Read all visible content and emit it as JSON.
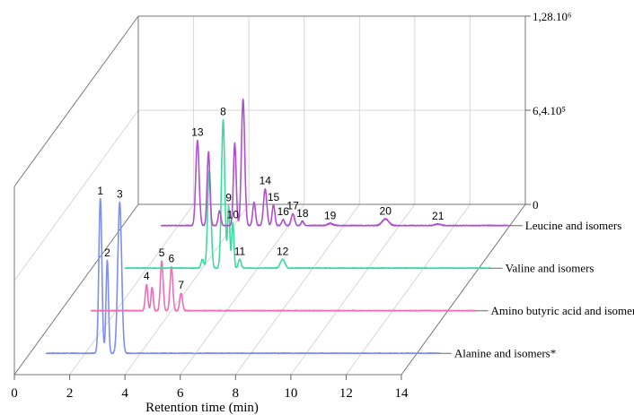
{
  "chart_data": {
    "type": "line",
    "style": "3d-stacked-chromatogram",
    "xlabel": "Retention time (min)",
    "xlim": [
      0,
      14
    ],
    "xticks": [
      "0",
      "2",
      "4",
      "6",
      "8",
      "10",
      "12",
      "14"
    ],
    "zticks": [
      "0",
      "6,4.10⁵",
      "1,28.10⁶"
    ],
    "zlim": [
      0,
      1280000
    ],
    "grid": true,
    "series": [
      {
        "name": "Alanine and isomers*",
        "color": "#7f8ff0",
        "baseline_from": 0.6,
        "baseline_to": 14.8,
        "peaks": [
          {
            "label": "1",
            "x": 2.55,
            "height": 1050000,
            "width": 0.055
          },
          {
            "label": "2",
            "x": 2.8,
            "height": 630000,
            "width": 0.045
          },
          {
            "label": "3",
            "x": 3.25,
            "height": 1030000,
            "width": 0.07
          }
        ]
      },
      {
        "name": "Amino butyric acid and isomers*",
        "color": "#f06cb8",
        "baseline_from": 1.1,
        "baseline_to": 15.0,
        "peaks": [
          {
            "label": "4",
            "x": 3.1,
            "height": 180000,
            "width": 0.045
          },
          {
            "label": "",
            "x": 3.3,
            "height": 160000,
            "width": 0.04
          },
          {
            "label": "5",
            "x": 3.65,
            "height": 340000,
            "width": 0.05
          },
          {
            "label": "6",
            "x": 4.0,
            "height": 300000,
            "width": 0.05
          },
          {
            "label": "7",
            "x": 4.35,
            "height": 120000,
            "width": 0.05
          }
        ]
      },
      {
        "name": "Valine and isomers",
        "color": "#3ddba0",
        "baseline_from": 1.2,
        "baseline_to": 14.4,
        "peaks": [
          {
            "label": "",
            "x": 4.0,
            "height": 60000,
            "width": 0.05
          },
          {
            "label": "",
            "x": 4.25,
            "height": 660000,
            "width": 0.06
          },
          {
            "label": "8",
            "x": 4.75,
            "height": 1010000,
            "width": 0.06
          },
          {
            "label": "9",
            "x": 4.95,
            "height": 420000,
            "width": 0.04
          },
          {
            "label": "10",
            "x": 5.1,
            "height": 310000,
            "width": 0.04
          },
          {
            "label": "11",
            "x": 5.35,
            "height": 60000,
            "width": 0.05
          },
          {
            "label": "12",
            "x": 6.9,
            "height": 60000,
            "width": 0.08
          }
        ]
      },
      {
        "name": "Leucine and isomers",
        "color": "#b050d0",
        "baseline_from": 1.4,
        "baseline_to": 14.0,
        "peaks": [
          {
            "label": "13",
            "x": 2.7,
            "height": 580000,
            "width": 0.06
          },
          {
            "label": "",
            "x": 3.1,
            "height": 500000,
            "width": 0.05
          },
          {
            "label": "",
            "x": 3.5,
            "height": 100000,
            "width": 0.05
          },
          {
            "label": "",
            "x": 4.05,
            "height": 560000,
            "width": 0.05
          },
          {
            "label": "",
            "x": 4.35,
            "height": 860000,
            "width": 0.06
          },
          {
            "label": "",
            "x": 4.75,
            "height": 160000,
            "width": 0.05
          },
          {
            "label": "14",
            "x": 5.15,
            "height": 250000,
            "width": 0.06
          },
          {
            "label": "15",
            "x": 5.45,
            "height": 140000,
            "width": 0.05
          },
          {
            "label": "16",
            "x": 5.8,
            "height": 40000,
            "width": 0.05
          },
          {
            "label": "17",
            "x": 6.15,
            "height": 80000,
            "width": 0.06
          },
          {
            "label": "18",
            "x": 6.5,
            "height": 30000,
            "width": 0.05
          },
          {
            "label": "19",
            "x": 7.5,
            "height": 15000,
            "width": 0.1
          },
          {
            "label": "20",
            "x": 9.5,
            "height": 45000,
            "width": 0.12
          },
          {
            "label": "21",
            "x": 11.4,
            "height": 10000,
            "width": 0.12
          }
        ]
      }
    ]
  }
}
